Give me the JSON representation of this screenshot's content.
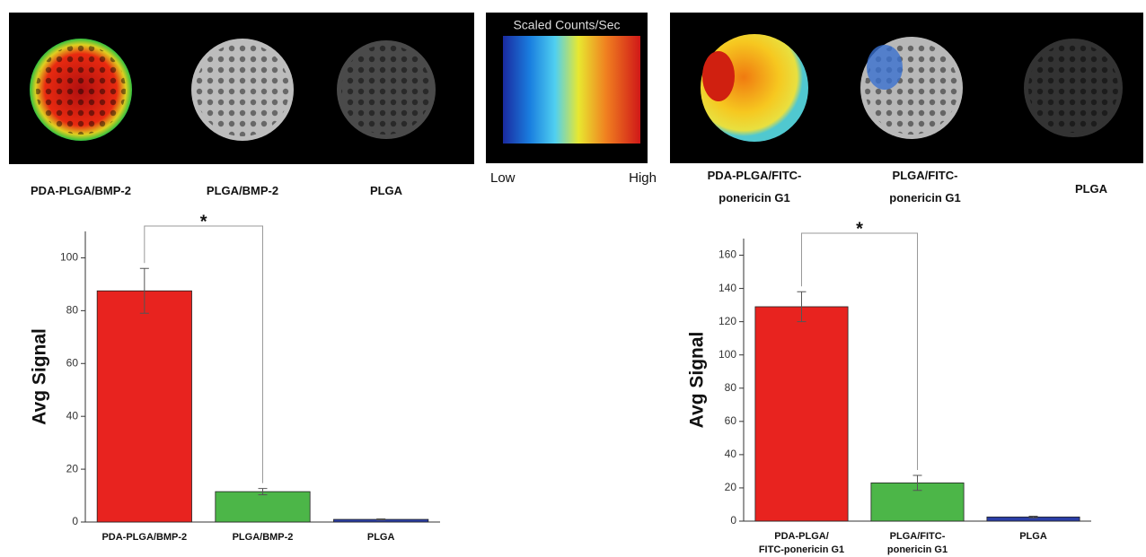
{
  "images_left": {
    "labels": [
      "PDA-PLGA/BMP-2",
      "PLGA/BMP-2",
      "PLGA"
    ]
  },
  "colorbar": {
    "title": "Scaled Counts/Sec",
    "low": "Low",
    "high": "High"
  },
  "images_right": {
    "labels": [
      "PDA-PLGA/FITC-\nponericin G1",
      "PLGA/FITC-\nponericin G1",
      "PLGA"
    ]
  },
  "chart_data": [
    {
      "type": "bar",
      "ylabel": "Avg Signal",
      "categories": [
        "PDA-PLGA/BMP-2",
        "PLGA/BMP-2",
        "PLGA"
      ],
      "values": [
        87.5,
        11.5,
        1
      ],
      "errors": [
        8.5,
        1.2,
        0.2
      ],
      "colors": [
        "#e8231f",
        "#4cb648",
        "#2b3ea6"
      ],
      "ylim": [
        0,
        110
      ],
      "yticks": [
        0,
        20,
        40,
        60,
        80,
        100
      ],
      "significance": {
        "label": "*",
        "pair": [
          0,
          1
        ]
      }
    },
    {
      "type": "bar",
      "ylabel": "Avg Signal",
      "categories": [
        "PDA-PLGA/\nFITC-ponericin G1",
        "PLGA/FITC-\nponericin G1",
        "PLGA"
      ],
      "values": [
        129,
        23,
        2.5
      ],
      "errors": [
        9,
        4.5,
        0.5
      ],
      "colors": [
        "#e8231f",
        "#4cb648",
        "#2b3ea6"
      ],
      "ylim": [
        0,
        170
      ],
      "yticks": [
        0,
        20,
        40,
        60,
        80,
        100,
        120,
        140,
        160
      ],
      "significance": {
        "label": "*",
        "pair": [
          0,
          1
        ]
      }
    }
  ]
}
